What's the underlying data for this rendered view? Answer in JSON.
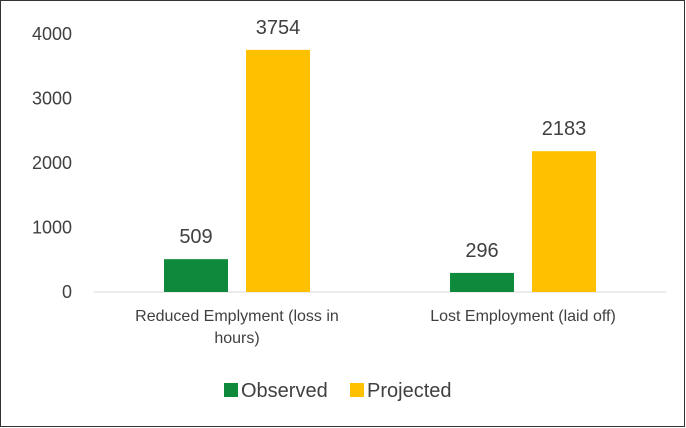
{
  "chart_data": {
    "type": "bar",
    "title": "",
    "categories": [
      "Reduced Emplyment (loss in hours)",
      "Lost Employment (laid off)"
    ],
    "series": [
      {
        "name": "Observed",
        "values": [
          509,
          296
        ],
        "color": "#0f8a3c"
      },
      {
        "name": "Projected",
        "values": [
          3754,
          2183
        ],
        "color": "#ffc000"
      }
    ],
    "ylim": [
      0,
      4000
    ],
    "yticks": [
      0,
      1000,
      2000,
      3000,
      4000
    ],
    "grid": false,
    "legend": "bottom",
    "data_labels": true
  }
}
